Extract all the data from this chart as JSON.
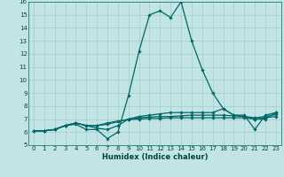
{
  "xlabel": "Humidex (Indice chaleur)",
  "xlim": [
    -0.5,
    23.5
  ],
  "ylim": [
    5,
    16
  ],
  "xticks": [
    0,
    1,
    2,
    3,
    4,
    5,
    6,
    7,
    8,
    9,
    10,
    11,
    12,
    13,
    14,
    15,
    16,
    17,
    18,
    19,
    20,
    21,
    22,
    23
  ],
  "yticks": [
    5,
    6,
    7,
    8,
    9,
    10,
    11,
    12,
    13,
    14,
    15,
    16
  ],
  "bg_color": "#c2e4e4",
  "grid_color": "#a8d0d0",
  "line_color": "#006868",
  "series": [
    [
      6.1,
      6.1,
      6.2,
      6.5,
      6.6,
      6.2,
      6.2,
      5.5,
      6.0,
      8.8,
      12.2,
      15.0,
      15.3,
      14.8,
      16.0,
      13.0,
      10.8,
      9.0,
      7.8,
      7.3,
      7.3,
      6.2,
      7.3,
      7.5
    ],
    [
      6.1,
      6.1,
      6.2,
      6.5,
      6.7,
      6.5,
      6.3,
      6.2,
      6.5,
      7.0,
      7.2,
      7.3,
      7.4,
      7.5,
      7.5,
      7.5,
      7.5,
      7.5,
      7.8,
      7.3,
      7.2,
      7.0,
      7.0,
      7.5
    ],
    [
      6.1,
      6.1,
      6.2,
      6.5,
      6.7,
      6.5,
      6.5,
      6.6,
      6.8,
      7.0,
      7.1,
      7.15,
      7.2,
      7.2,
      7.25,
      7.3,
      7.3,
      7.3,
      7.3,
      7.25,
      7.2,
      7.1,
      7.2,
      7.35
    ],
    [
      6.1,
      6.1,
      6.2,
      6.5,
      6.7,
      6.5,
      6.5,
      6.7,
      6.85,
      6.95,
      7.0,
      7.05,
      7.05,
      7.1,
      7.1,
      7.1,
      7.1,
      7.1,
      7.1,
      7.1,
      7.1,
      7.0,
      7.1,
      7.2
    ]
  ]
}
